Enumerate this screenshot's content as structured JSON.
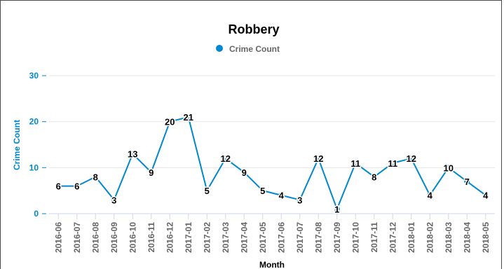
{
  "chart_data": {
    "type": "line",
    "title": "Robbery",
    "xlabel": "Month",
    "ylabel": "Crime Count",
    "ylim": [
      0,
      30
    ],
    "yticks": [
      "0",
      "10",
      "20",
      "30"
    ],
    "grid": true,
    "legend_position": "top-center",
    "categories": [
      "2016-06",
      "2016-07",
      "2016-08",
      "2016-09",
      "2016-10",
      "2016-11",
      "2016-12",
      "2017-01",
      "2017-02",
      "2017-03",
      "2017-04",
      "2017-05",
      "2017-06",
      "2017-07",
      "2017-08",
      "2017-09",
      "2017-10",
      "2017-11",
      "2017-12",
      "2018-01",
      "2018-02",
      "2018-03",
      "2018-04",
      "2018-05"
    ],
    "series": [
      {
        "name": "Crime Count",
        "color": "#0088cc",
        "values": [
          6,
          6,
          8,
          3,
          13,
          9,
          20,
          21,
          5,
          12,
          9,
          5,
          4,
          3,
          12,
          1,
          11,
          8,
          11,
          12,
          4,
          10,
          7,
          4
        ]
      }
    ]
  }
}
